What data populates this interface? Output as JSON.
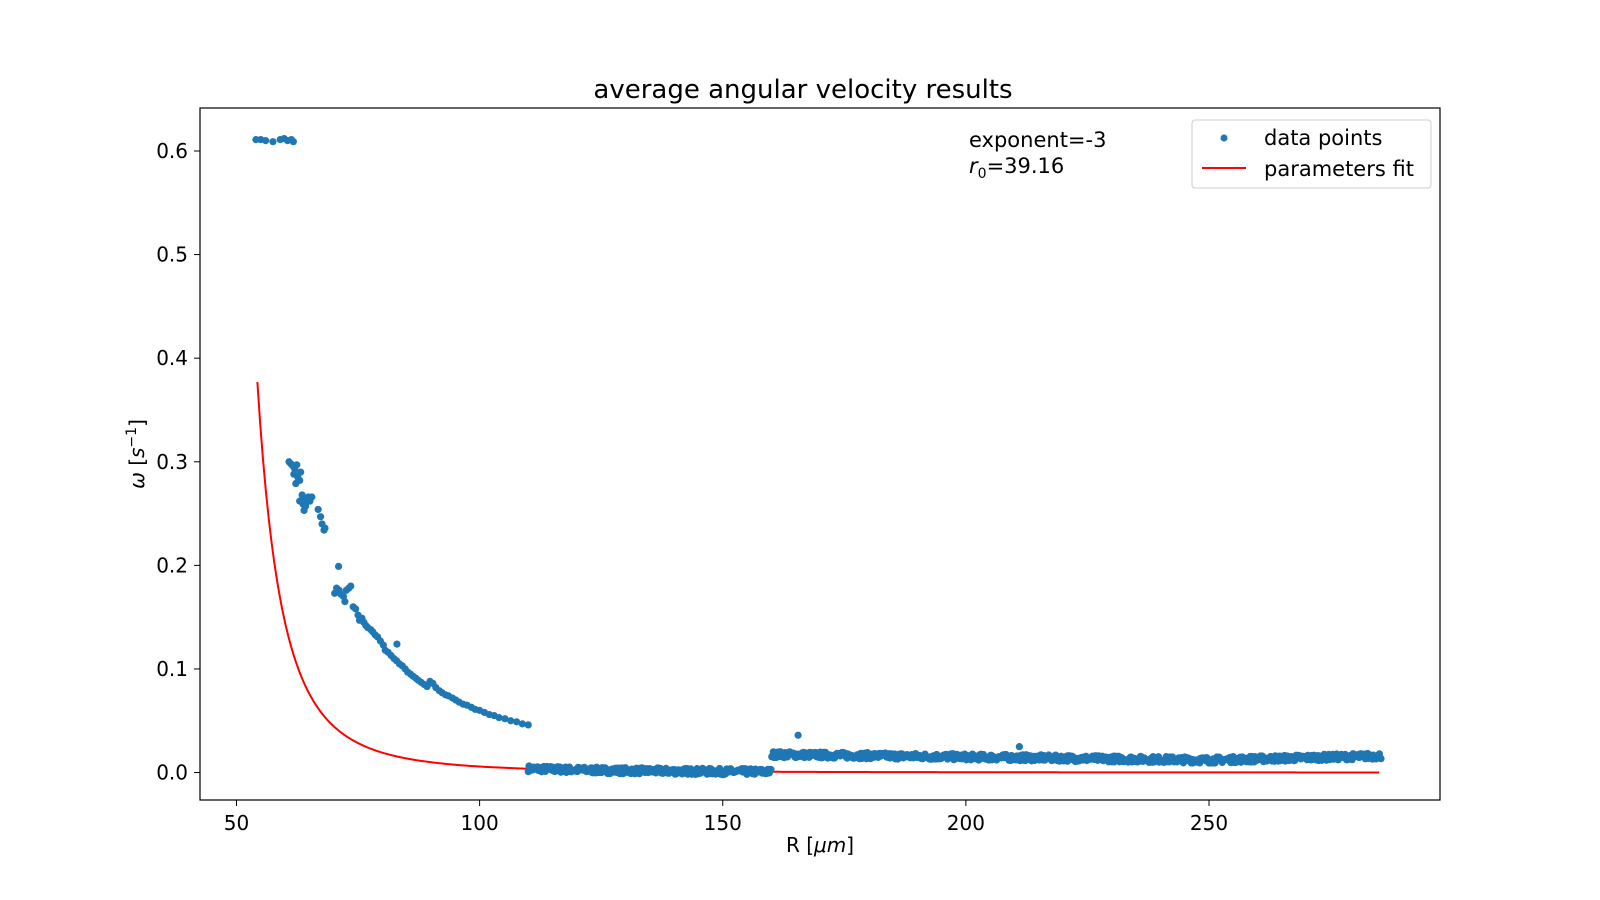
{
  "chart_data": {
    "type": "scatter",
    "title": "average angular velocity results",
    "xlabel": {
      "text": "R [",
      "unit": "μm",
      "close": "]"
    },
    "ylabel": {
      "symbol": "ω",
      "open": "[",
      "unit": "s",
      "exp": "−1",
      "close": "]"
    },
    "xlim": [
      42.5,
      297.5
    ],
    "ylim": [
      -0.0265,
      0.6415
    ],
    "xticks": [
      50,
      100,
      150,
      200,
      250
    ],
    "xtick_labels": [
      "50",
      "100",
      "150",
      "200",
      "250"
    ],
    "yticks": [
      0.0,
      0.1,
      0.2,
      0.3,
      0.4,
      0.5,
      0.6
    ],
    "ytick_labels": [
      "0.0",
      "0.1",
      "0.2",
      "0.3",
      "0.4",
      "0.5",
      "0.6"
    ],
    "grid": false,
    "legend_position": "top-right",
    "annotation": {
      "line1": "exponent=-3",
      "r_symbol": "r",
      "r_sub": "0",
      "r_value": "=39.16"
    },
    "colors": {
      "points": "#1f77b4",
      "fit": "#ff0000"
    },
    "series": [
      {
        "name": "data points",
        "kind": "scatter",
        "points": [
          [
            54.0,
            0.611
          ],
          [
            55.0,
            0.611
          ],
          [
            56.0,
            0.61
          ],
          [
            57.5,
            0.609
          ],
          [
            59.0,
            0.611
          ],
          [
            59.8,
            0.612
          ],
          [
            60.5,
            0.61
          ],
          [
            61.3,
            0.611
          ],
          [
            61.7,
            0.609
          ],
          [
            60.8,
            0.3
          ],
          [
            61.2,
            0.298
          ],
          [
            61.6,
            0.296
          ],
          [
            62.0,
            0.293
          ],
          [
            62.4,
            0.297
          ],
          [
            61.8,
            0.288
          ],
          [
            62.6,
            0.285
          ],
          [
            63.0,
            0.282
          ],
          [
            62.2,
            0.279
          ],
          [
            63.2,
            0.29
          ],
          [
            63.5,
            0.268
          ],
          [
            64.0,
            0.265
          ],
          [
            64.4,
            0.261
          ],
          [
            64.8,
            0.266
          ],
          [
            65.1,
            0.262
          ],
          [
            65.5,
            0.266
          ],
          [
            63.7,
            0.259
          ],
          [
            64.2,
            0.257
          ],
          [
            63.0,
            0.262
          ],
          [
            63.9,
            0.253
          ],
          [
            66.8,
            0.254
          ],
          [
            67.3,
            0.247
          ],
          [
            67.6,
            0.24
          ],
          [
            68.2,
            0.236
          ],
          [
            68.0,
            0.234
          ],
          [
            70.2,
            0.173
          ],
          [
            70.6,
            0.178
          ],
          [
            71.1,
            0.176
          ],
          [
            71.5,
            0.172
          ],
          [
            72.0,
            0.17
          ],
          [
            71.0,
            0.199
          ],
          [
            72.6,
            0.176
          ],
          [
            73.1,
            0.178
          ],
          [
            73.5,
            0.18
          ],
          [
            72.3,
            0.165
          ],
          [
            74.0,
            0.16
          ],
          [
            74.5,
            0.158
          ],
          [
            75.0,
            0.152
          ],
          [
            75.3,
            0.147
          ],
          [
            75.8,
            0.149
          ],
          [
            76.2,
            0.145
          ],
          [
            76.6,
            0.142
          ],
          [
            77.0,
            0.14
          ],
          [
            77.6,
            0.138
          ],
          [
            78.0,
            0.136
          ],
          [
            78.5,
            0.133
          ],
          [
            79.0,
            0.131
          ],
          [
            79.6,
            0.127
          ],
          [
            80.2,
            0.123
          ],
          [
            80.6,
            0.118
          ],
          [
            81.2,
            0.116
          ],
          [
            81.8,
            0.113
          ],
          [
            82.4,
            0.11
          ],
          [
            82.9,
            0.108
          ],
          [
            83.5,
            0.105
          ],
          [
            83.0,
            0.124
          ],
          [
            84.1,
            0.103
          ],
          [
            84.7,
            0.1
          ],
          [
            85.2,
            0.097
          ],
          [
            85.8,
            0.095
          ],
          [
            86.3,
            0.093
          ],
          [
            86.9,
            0.091
          ],
          [
            87.4,
            0.089
          ],
          [
            88.0,
            0.087
          ],
          [
            88.6,
            0.085
          ],
          [
            89.2,
            0.083
          ],
          [
            89.8,
            0.088
          ],
          [
            90.4,
            0.086
          ],
          [
            91.0,
            0.082
          ],
          [
            91.7,
            0.079
          ],
          [
            92.3,
            0.077
          ],
          [
            93.0,
            0.075
          ],
          [
            93.6,
            0.074
          ],
          [
            94.4,
            0.072
          ],
          [
            95.1,
            0.07
          ],
          [
            95.8,
            0.068
          ],
          [
            96.6,
            0.066
          ],
          [
            97.4,
            0.065
          ],
          [
            98.3,
            0.063
          ],
          [
            99.1,
            0.061
          ],
          [
            100.0,
            0.06
          ],
          [
            101.0,
            0.058
          ],
          [
            102.0,
            0.056
          ],
          [
            103.0,
            0.055
          ],
          [
            104.0,
            0.053
          ],
          [
            105.2,
            0.052
          ],
          [
            106.4,
            0.05
          ],
          [
            107.6,
            0.049
          ],
          [
            108.8,
            0.047
          ],
          [
            110.0,
            0.046
          ]
        ]
      },
      {
        "name": "parameters fit",
        "kind": "line",
        "function": "power",
        "exponent": -3,
        "r0": 39.16,
        "x_range": [
          54.3,
          285.0
        ],
        "y_range": [
          0.377,
          0.0027
        ]
      }
    ]
  }
}
